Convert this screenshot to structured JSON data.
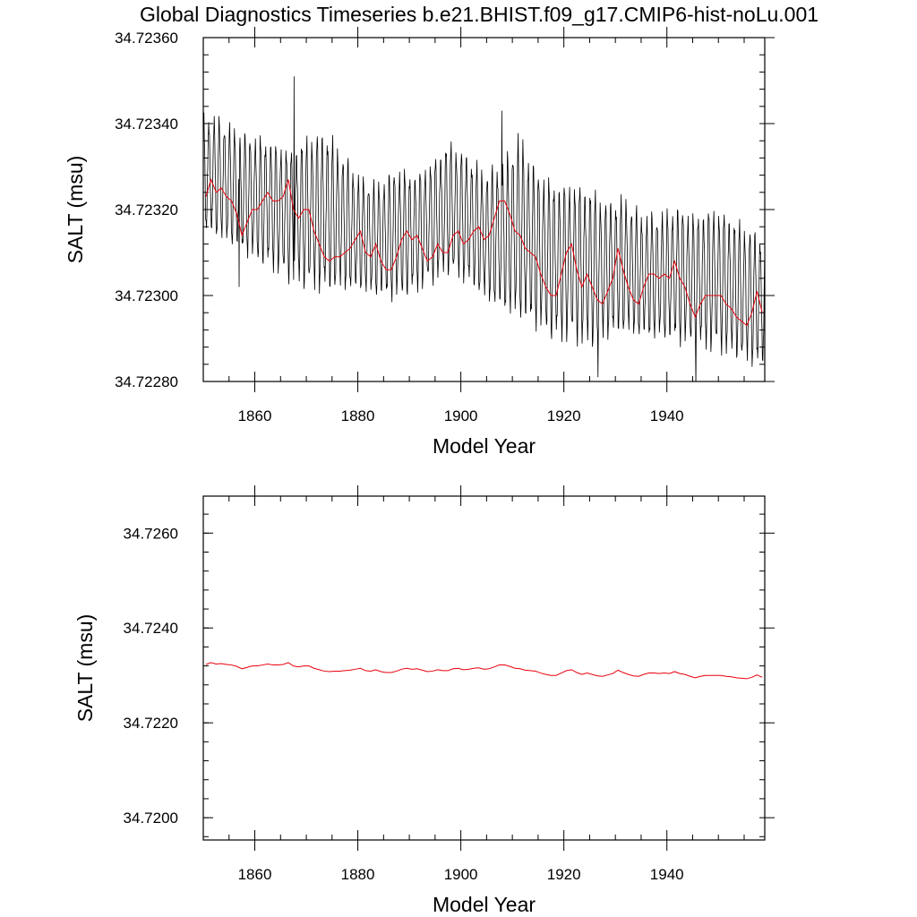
{
  "title": "Global Diagnostics Timeseries b.e21.BHIST.f09_g17.CMIP6-hist-noLu.001",
  "colors": {
    "monthly": "#000000",
    "annual": "#e8000b",
    "axes": "#000000"
  },
  "chart_data": [
    {
      "type": "line",
      "xlabel": "Model Year",
      "ylabel": "SALT (msu)",
      "xlim": [
        1850,
        1959
      ],
      "ylim": [
        34.7228,
        34.7236
      ],
      "xticks": [
        1860,
        1880,
        1900,
        1920,
        1940
      ],
      "yticks": [
        "34.72280",
        "34.72300",
        "34.72320",
        "34.72340",
        "34.72360"
      ],
      "series": [
        {
          "kind": "monthly",
          "x": [
            1850,
            1959
          ],
          "y_max": [
            34.72345,
            34.72344,
            34.72341,
            34.7234,
            34.72339,
            34.72337,
            34.72341,
            34.72342,
            34.72336,
            34.7233,
            34.72329,
            34.72333,
            34.72331,
            34.72334,
            34.72339,
            34.72336,
            34.72332,
            34.72334,
            34.72342,
            34.72333,
            34.7233,
            34.7233,
            34.72329,
            34.72325,
            34.72326,
            34.72322,
            34.72322,
            34.72324,
            34.72322,
            34.72324,
            34.72322,
            34.72319,
            34.72317
          ],
          "y_min": [
            34.72312,
            34.7231,
            34.72308,
            34.72305,
            34.72303,
            34.723,
            34.72298,
            34.72297,
            34.72298,
            34.72298,
            34.72297,
            34.72296,
            34.72298,
            34.723,
            34.72302,
            34.723,
            34.72296,
            34.72293,
            34.7229,
            34.72289,
            34.72286,
            34.72286,
            34.72284,
            34.72287,
            34.72288,
            34.72287,
            34.72287,
            34.72286,
            34.72285,
            34.72284,
            34.72283,
            34.72281,
            34.7228
          ],
          "spikes": [
            [
              1867.6,
              34.72351
            ],
            [
              1908.0,
              34.72343
            ],
            [
              1926.6,
              34.72281
            ],
            [
              1945.6,
              34.72279
            ],
            [
              1857.0,
              34.72302
            ]
          ]
        },
        {
          "kind": "annual",
          "x": [
            1850.5,
            1851.5,
            1852.5,
            1853.5,
            1854.5,
            1855.5,
            1856.5,
            1857.5,
            1858.5,
            1859.5,
            1860.5,
            1861.5,
            1862.5,
            1863.5,
            1864.5,
            1865.5,
            1866.5,
            1867.5,
            1868.5,
            1869.5,
            1870.5,
            1871.5,
            1872.5,
            1873.5,
            1874.5,
            1875.5,
            1876.5,
            1877.5,
            1878.5,
            1879.5,
            1880.5,
            1881.5,
            1882.5,
            1883.5,
            1884.5,
            1885.5,
            1886.5,
            1887.5,
            1888.5,
            1889.5,
            1890.5,
            1891.5,
            1892.5,
            1893.5,
            1894.5,
            1895.5,
            1896.5,
            1897.5,
            1898.5,
            1899.5,
            1900.5,
            1901.5,
            1902.5,
            1903.5,
            1904.5,
            1905.5,
            1906.5,
            1907.5,
            1908.5,
            1909.5,
            1910.5,
            1911.5,
            1912.5,
            1913.5,
            1914.5,
            1915.5,
            1916.5,
            1917.5,
            1918.5,
            1919.5,
            1920.5,
            1921.5,
            1922.5,
            1923.5,
            1924.5,
            1925.5,
            1926.5,
            1927.5,
            1928.5,
            1929.5,
            1930.5,
            1931.5,
            1932.5,
            1933.5,
            1934.5,
            1935.5,
            1936.5,
            1937.5,
            1938.5,
            1939.5,
            1940.5,
            1941.5,
            1942.5,
            1943.5,
            1944.5,
            1945.5,
            1946.5,
            1947.5,
            1948.5,
            1949.5,
            1950.5,
            1951.5,
            1952.5,
            1953.5,
            1954.5,
            1955.5,
            1956.5,
            1957.5,
            1958.5
          ],
          "y": [
            34.72323,
            34.72327,
            34.72324,
            34.72325,
            34.72323,
            34.72322,
            34.72319,
            34.72314,
            34.72317,
            34.7232,
            34.7232,
            34.72322,
            34.72324,
            34.72322,
            34.72322,
            34.72323,
            34.72327,
            34.7232,
            34.72318,
            34.7232,
            34.7232,
            34.72315,
            34.72312,
            34.72309,
            34.72308,
            34.72309,
            34.72309,
            34.7231,
            34.72311,
            34.72313,
            34.72315,
            34.7231,
            34.72309,
            34.72312,
            34.72308,
            34.72306,
            34.72306,
            34.72309,
            34.72313,
            34.72315,
            34.72313,
            34.72314,
            34.72311,
            34.72308,
            34.72309,
            34.72312,
            34.7231,
            34.7231,
            34.72314,
            34.72315,
            34.72312,
            34.72313,
            34.72315,
            34.72316,
            34.72313,
            34.72314,
            34.72318,
            34.72322,
            34.72322,
            34.72319,
            34.72315,
            34.72314,
            34.72311,
            34.7231,
            34.72309,
            34.72305,
            34.72302,
            34.723,
            34.723,
            34.72305,
            34.7231,
            34.72312,
            34.72306,
            34.72302,
            34.72305,
            34.72302,
            34.72299,
            34.72298,
            34.72301,
            34.72304,
            34.72311,
            34.72306,
            34.72302,
            34.72299,
            34.72298,
            34.72302,
            34.72305,
            34.72305,
            34.72304,
            34.72305,
            34.72304,
            34.72308,
            34.72304,
            34.72302,
            34.72298,
            34.72295,
            34.72298,
            34.723,
            34.723,
            34.723,
            34.723,
            34.72298,
            34.72297,
            34.72295,
            34.72294,
            34.72293,
            34.72296,
            34.72301,
            34.72296
          ]
        }
      ]
    },
    {
      "type": "line",
      "xlabel": "Model Year",
      "ylabel": "SALT (msu)",
      "xlim": [
        1850,
        1959
      ],
      "ylim": [
        34.71953,
        34.72678
      ],
      "xticks": [
        1860,
        1880,
        1900,
        1920,
        1940
      ],
      "yticks": [
        "34.7200",
        "34.7220",
        "34.7240",
        "34.7260"
      ],
      "series": [
        {
          "kind": "annual",
          "x": [
            1850.5,
            1851.5,
            1852.5,
            1853.5,
            1854.5,
            1855.5,
            1856.5,
            1857.5,
            1858.5,
            1859.5,
            1860.5,
            1861.5,
            1862.5,
            1863.5,
            1864.5,
            1865.5,
            1866.5,
            1867.5,
            1868.5,
            1869.5,
            1870.5,
            1871.5,
            1872.5,
            1873.5,
            1874.5,
            1875.5,
            1876.5,
            1877.5,
            1878.5,
            1879.5,
            1880.5,
            1881.5,
            1882.5,
            1883.5,
            1884.5,
            1885.5,
            1886.5,
            1887.5,
            1888.5,
            1889.5,
            1890.5,
            1891.5,
            1892.5,
            1893.5,
            1894.5,
            1895.5,
            1896.5,
            1897.5,
            1898.5,
            1899.5,
            1900.5,
            1901.5,
            1902.5,
            1903.5,
            1904.5,
            1905.5,
            1906.5,
            1907.5,
            1908.5,
            1909.5,
            1910.5,
            1911.5,
            1912.5,
            1913.5,
            1914.5,
            1915.5,
            1916.5,
            1917.5,
            1918.5,
            1919.5,
            1920.5,
            1921.5,
            1922.5,
            1923.5,
            1924.5,
            1925.5,
            1926.5,
            1927.5,
            1928.5,
            1929.5,
            1930.5,
            1931.5,
            1932.5,
            1933.5,
            1934.5,
            1935.5,
            1936.5,
            1937.5,
            1938.5,
            1939.5,
            1940.5,
            1941.5,
            1942.5,
            1943.5,
            1944.5,
            1945.5,
            1946.5,
            1947.5,
            1948.5,
            1949.5,
            1950.5,
            1951.5,
            1952.5,
            1953.5,
            1954.5,
            1955.5,
            1956.5,
            1957.5,
            1958.5
          ],
          "y": [
            34.72323,
            34.72327,
            34.72324,
            34.72325,
            34.72323,
            34.72322,
            34.72319,
            34.72314,
            34.72317,
            34.7232,
            34.7232,
            34.72322,
            34.72324,
            34.72322,
            34.72322,
            34.72323,
            34.72327,
            34.7232,
            34.72318,
            34.7232,
            34.7232,
            34.72315,
            34.72312,
            34.72309,
            34.72308,
            34.72309,
            34.72309,
            34.7231,
            34.72311,
            34.72313,
            34.72315,
            34.7231,
            34.72309,
            34.72312,
            34.72308,
            34.72306,
            34.72306,
            34.72309,
            34.72313,
            34.72315,
            34.72313,
            34.72314,
            34.72311,
            34.72308,
            34.72309,
            34.72312,
            34.7231,
            34.7231,
            34.72314,
            34.72315,
            34.72312,
            34.72313,
            34.72315,
            34.72316,
            34.72313,
            34.72314,
            34.72318,
            34.72322,
            34.72322,
            34.72319,
            34.72315,
            34.72314,
            34.72311,
            34.7231,
            34.72309,
            34.72305,
            34.72302,
            34.723,
            34.723,
            34.72305,
            34.7231,
            34.72312,
            34.72306,
            34.72302,
            34.72305,
            34.72302,
            34.72299,
            34.72298,
            34.72301,
            34.72304,
            34.72311,
            34.72306,
            34.72302,
            34.72299,
            34.72298,
            34.72302,
            34.72305,
            34.72305,
            34.72304,
            34.72305,
            34.72304,
            34.72308,
            34.72304,
            34.72302,
            34.72298,
            34.72295,
            34.72298,
            34.723,
            34.723,
            34.723,
            34.723,
            34.72298,
            34.72297,
            34.72295,
            34.72294,
            34.72293,
            34.72296,
            34.72301,
            34.72296
          ]
        }
      ]
    }
  ]
}
